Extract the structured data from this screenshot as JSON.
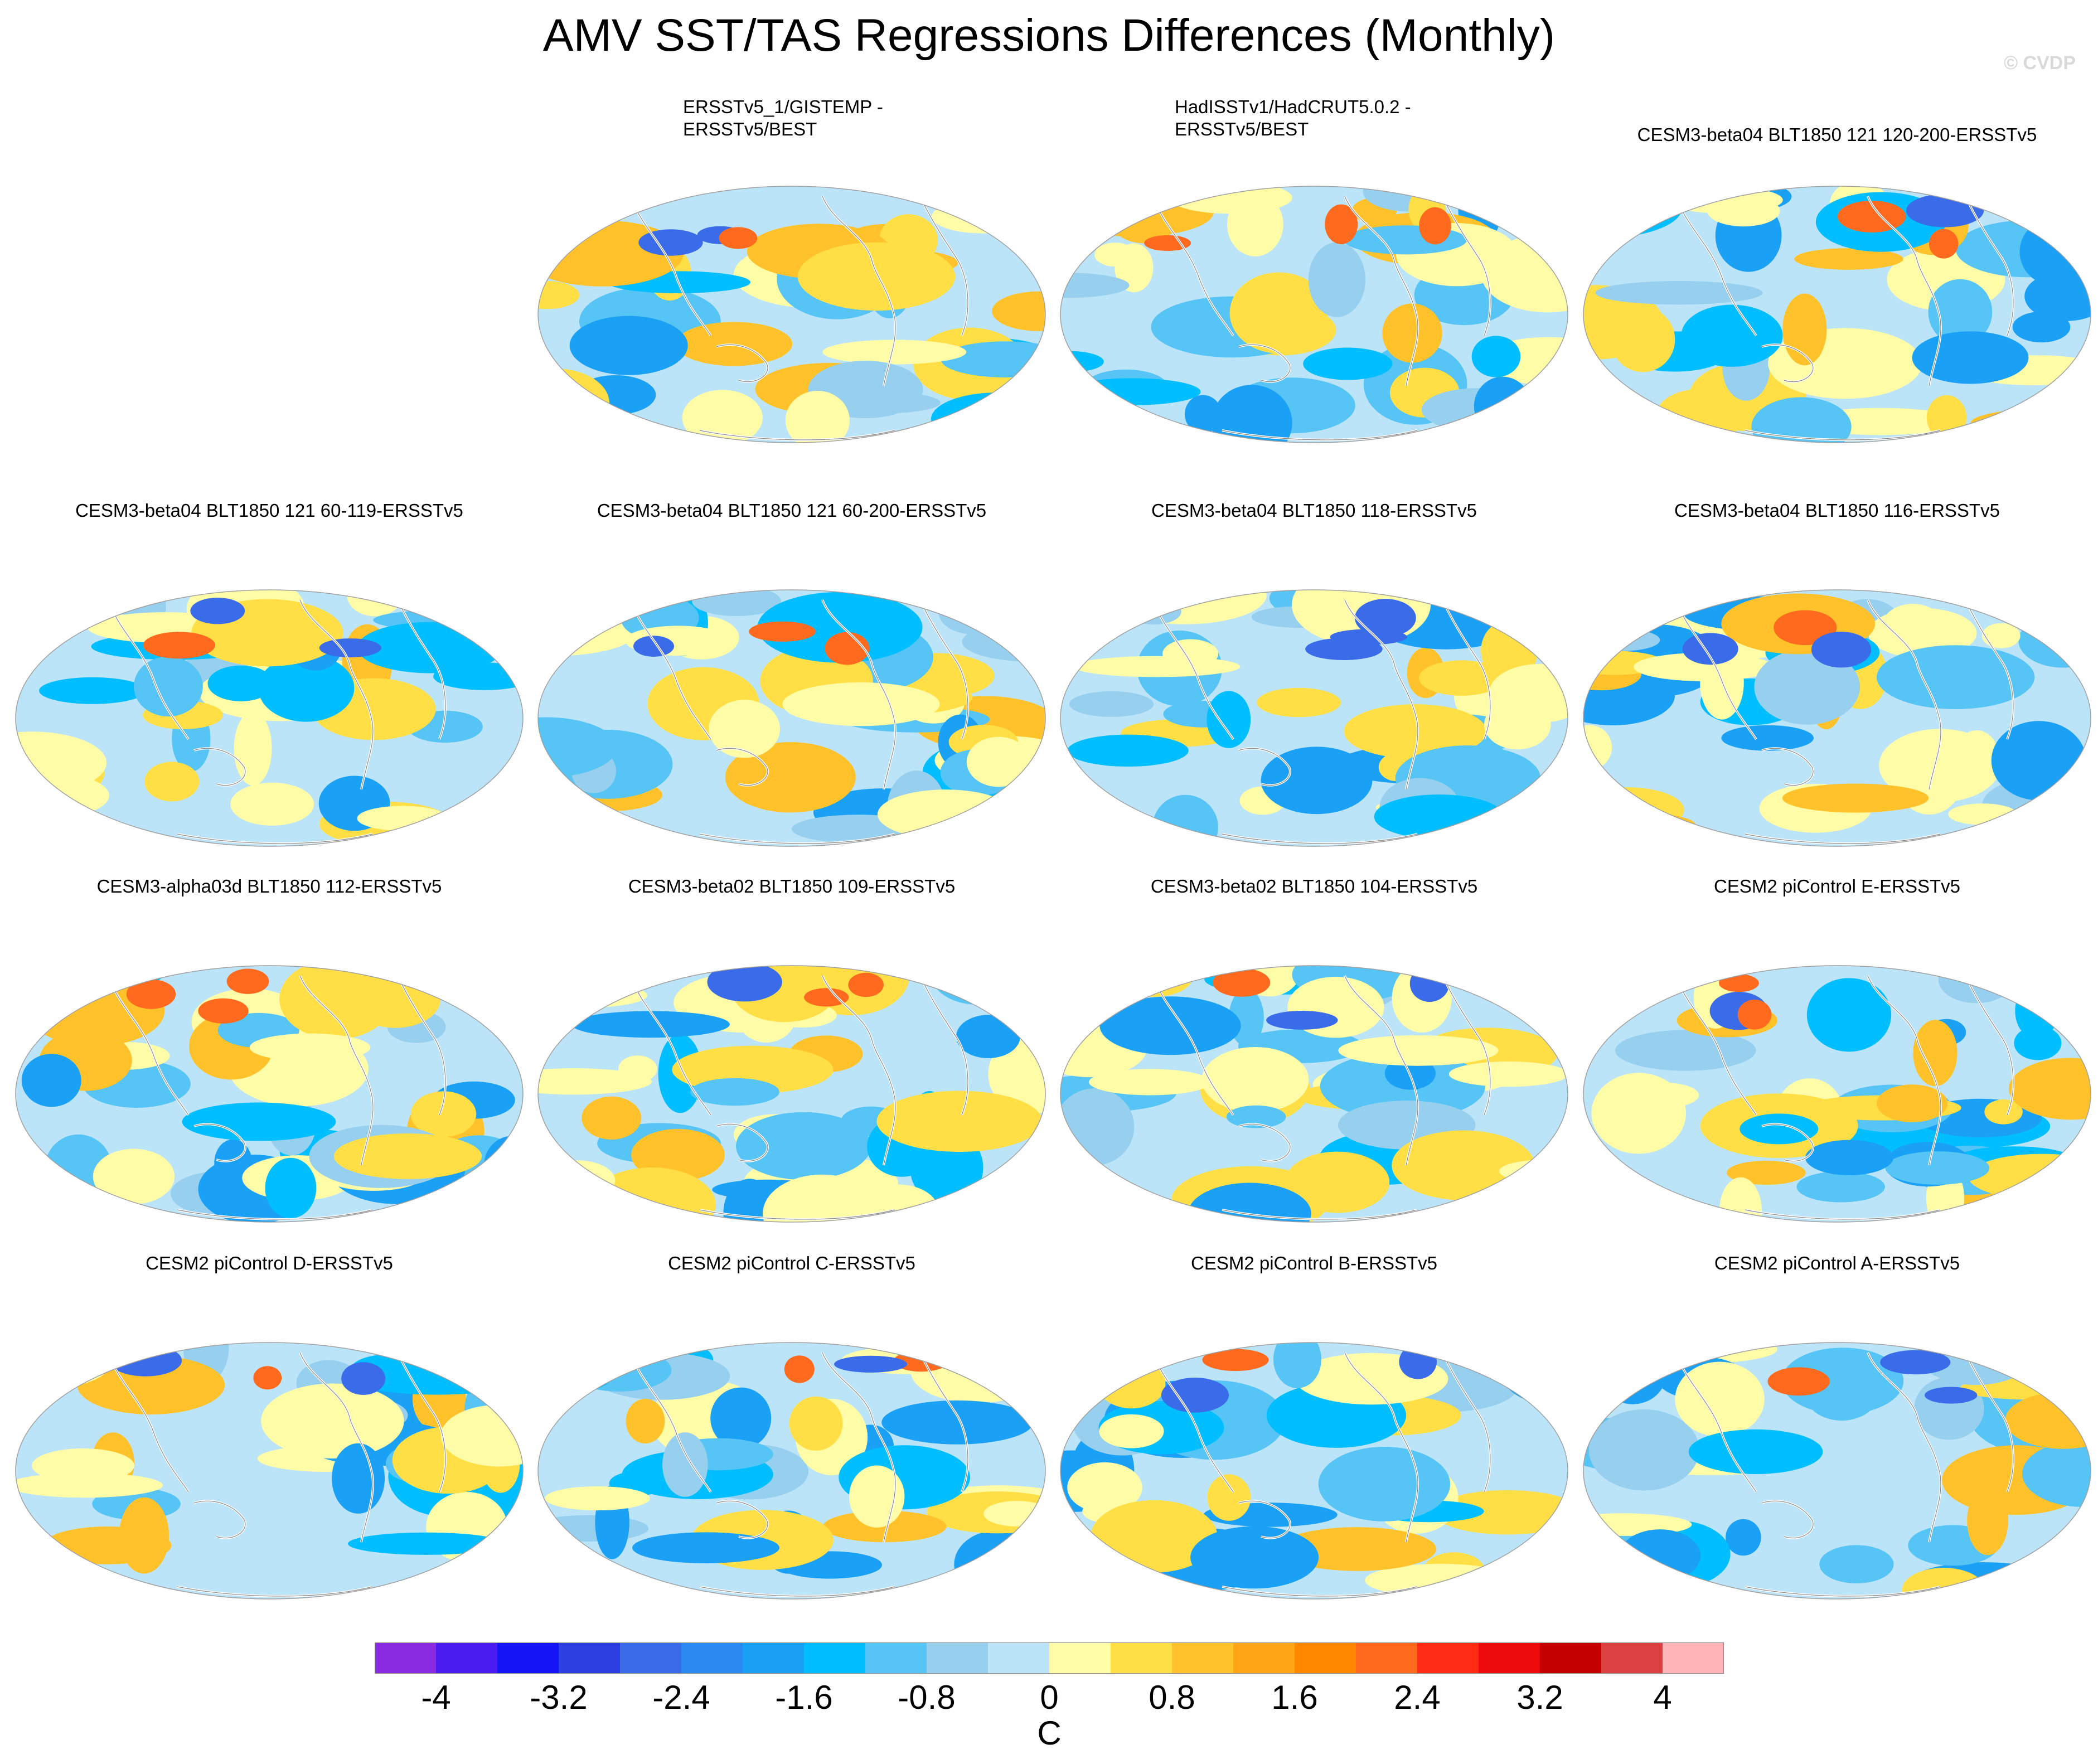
{
  "title": "AMV SST/TAS Regressions Differences (Monthly)",
  "watermark": "© CVDP",
  "legend": {
    "unit": "C",
    "tick_labels": [
      "-4",
      "-3.2",
      "-2.4",
      "-1.6",
      "-0.8",
      "0",
      "0.8",
      "1.6",
      "2.4",
      "3.2",
      "4"
    ],
    "colors": [
      "#8a2be2",
      "#4a1cf0",
      "#1414f5",
      "#2c3fe0",
      "#3a6cea",
      "#2a8af2",
      "#1aa0f5",
      "#00beff",
      "#56c4f4",
      "#97cfef",
      "#bce4f8",
      "#fffca8",
      "#ffdf45",
      "#ffc22a",
      "#ffa516",
      "#ff8800",
      "#ff6a1e",
      "#ff2b14",
      "#ee0b0b",
      "#c40000",
      "#dd4040",
      "#ffb5b5"
    ]
  },
  "panels": [
    {
      "title": "ERSSTv5_1/GISTEMP - ERSSTv5/BEST",
      "title_lines": [
        "ERSSTv5_1/GISTEMP -",
        "ERSSTv5/BEST"
      ]
    },
    {
      "title": "HadISSTv1/HadCRUT5.0.2 - ERSSTv5/BEST",
      "title_lines": [
        "HadISSTv1/HadCRUT5.0.2 -",
        "ERSSTv5/BEST"
      ]
    },
    {
      "title": "CESM3-beta04 BLT1850 121 120-200-ERSSTv5"
    },
    {
      "title": "CESM3-beta04 BLT1850 121 60-119-ERSSTv5"
    },
    {
      "title": "CESM3-beta04 BLT1850 121 60-200-ERSSTv5"
    },
    {
      "title": "CESM3-beta04 BLT1850 118-ERSSTv5"
    },
    {
      "title": "CESM3-beta04 BLT1850 116-ERSSTv5"
    },
    {
      "title": "CESM3-alpha03d BLT1850 112-ERSSTv5"
    },
    {
      "title": "CESM3-beta02 BLT1850 109-ERSSTv5"
    },
    {
      "title": "CESM3-beta02 BLT1850 104-ERSSTv5"
    },
    {
      "title": "CESM2 piControl E-ERSSTv5"
    },
    {
      "title": "CESM2 piControl D-ERSSTv5"
    },
    {
      "title": "CESM2 piControl C-ERSSTv5"
    },
    {
      "title": "CESM2 piControl B-ERSSTv5"
    },
    {
      "title": "CESM2 piControl A-ERSSTv5"
    }
  ]
}
